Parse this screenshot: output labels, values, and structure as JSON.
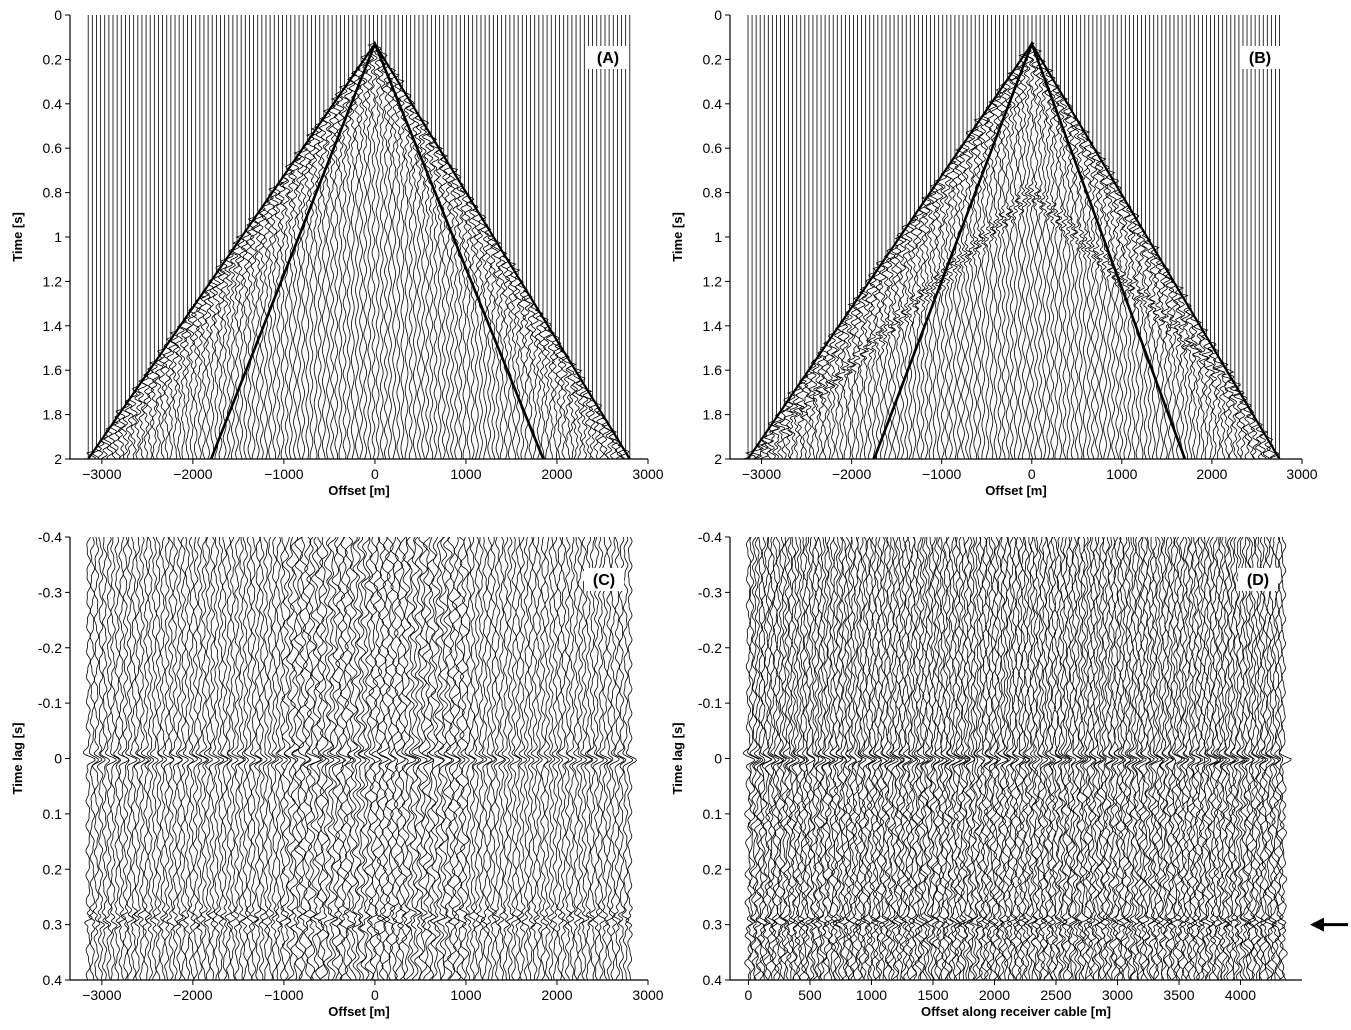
{
  "chart_data": [
    {
      "id": "A",
      "type": "seismic-wiggle",
      "panel_label": "(A)",
      "xlabel": "Offset [m]",
      "ylabel": "Time [s]",
      "xlim": [
        -3350,
        3000
      ],
      "ylim": [
        0,
        2
      ],
      "y_inverted": true,
      "xticks": [
        -3000,
        -2000,
        -1000,
        0,
        1000,
        2000,
        3000
      ],
      "xtick_labels": [
        "−3000",
        "−2000",
        "−1000",
        "0",
        "1000",
        "2000",
        "3000"
      ],
      "yticks": [
        0,
        0.2,
        0.4,
        0.6,
        0.8,
        1,
        1.2,
        1.4,
        1.6,
        1.8,
        2
      ],
      "ytick_labels": [
        "0",
        "0.2",
        "0.4",
        "0.6",
        "0.8",
        "1",
        "1.2",
        "1.4",
        "1.6",
        "1.8",
        "2"
      ],
      "traces_offset_range": [
        -3150,
        2800
      ],
      "trace_count": 132,
      "source_offset": 0,
      "apex_time": 0.13,
      "outer_arrival_lines": [
        {
          "x": [
            -3150,
            0,
            2800
          ],
          "y": [
            2.0,
            0.13,
            2.0
          ]
        }
      ],
      "inner_lines": [
        {
          "x": [
            -1800,
            0,
            1850
          ],
          "y": [
            2.0,
            0.13,
            2.0
          ]
        }
      ]
    },
    {
      "id": "B",
      "type": "seismic-wiggle",
      "panel_label": "(B)",
      "xlabel": "Offset [m]",
      "ylabel": "Time [s]",
      "xlim": [
        -3350,
        3000
      ],
      "ylim": [
        0,
        2
      ],
      "y_inverted": true,
      "xticks": [
        -3000,
        -2000,
        -1000,
        0,
        1000,
        2000,
        3000
      ],
      "xtick_labels": [
        "−3000",
        "−2000",
        "−1000",
        "0",
        "1000",
        "2000",
        "3000"
      ],
      "yticks": [
        0,
        0.2,
        0.4,
        0.6,
        0.8,
        1,
        1.2,
        1.4,
        1.6,
        1.8,
        2
      ],
      "ytick_labels": [
        "0",
        "0.2",
        "0.4",
        "0.6",
        "0.8",
        "1",
        "1.2",
        "1.4",
        "1.6",
        "1.8",
        "2"
      ],
      "traces_offset_range": [
        -3150,
        2750
      ],
      "trace_count": 132,
      "source_offset": 0,
      "apex_time": 0.13,
      "outer_arrival_lines": [
        {
          "x": [
            -3150,
            0,
            2750
          ],
          "y": [
            2.0,
            0.13,
            2.0
          ]
        }
      ],
      "inner_lines": [
        {
          "x": [
            -1750,
            0,
            1700
          ],
          "y": [
            2.0,
            0.13,
            2.0
          ]
        }
      ]
    },
    {
      "id": "C",
      "type": "seismic-wiggle",
      "panel_label": "(C)",
      "xlabel": "Offset [m]",
      "ylabel": "Time lag [s]",
      "xlim": [
        -3350,
        3000
      ],
      "ylim": [
        -0.4,
        0.4
      ],
      "y_inverted": true,
      "xticks": [
        -3000,
        -2000,
        -1000,
        0,
        1000,
        2000,
        3000
      ],
      "xtick_labels": [
        "−3000",
        "−2000",
        "−1000",
        "0",
        "1000",
        "2000",
        "3000"
      ],
      "yticks": [
        -0.4,
        -0.3,
        -0.2,
        -0.1,
        0,
        0.1,
        0.2,
        0.3,
        0.4
      ],
      "ytick_labels": [
        "-0.4",
        "-0.3",
        "-0.2",
        "-0.1",
        "0",
        "0.1",
        "0.2",
        "0.3",
        "0.4"
      ],
      "traces_offset_range": [
        -3150,
        2800
      ],
      "trace_count": 132,
      "zero_lag_event": 0,
      "reflection_lag": 0.29
    },
    {
      "id": "D",
      "type": "seismic-wiggle",
      "panel_label": "(D)",
      "xlabel": "Offset along receiver cable [m]",
      "ylabel": "Time lag [s]",
      "xlim": [
        -150,
        4500
      ],
      "ylim": [
        -0.4,
        0.4
      ],
      "y_inverted": true,
      "xticks": [
        0,
        500,
        1000,
        1500,
        2000,
        2500,
        3000,
        3500,
        4000
      ],
      "xtick_labels": [
        "0",
        "500",
        "1000",
        "1500",
        "2000",
        "2500",
        "3000",
        "3500",
        "4000"
      ],
      "yticks": [
        -0.4,
        -0.3,
        -0.2,
        -0.1,
        0,
        0.1,
        0.2,
        0.3,
        0.4
      ],
      "ytick_labels": [
        "-0.4",
        "-0.3",
        "-0.2",
        "-0.1",
        "0",
        "0.1",
        "0.2",
        "0.3",
        "0.4"
      ],
      "traces_offset_range": [
        0,
        4350
      ],
      "trace_count": 180,
      "zero_lag_event": 0,
      "reflection_lag": 0.3,
      "arrow_lag": 0.3,
      "arrow_direction": "left"
    }
  ]
}
